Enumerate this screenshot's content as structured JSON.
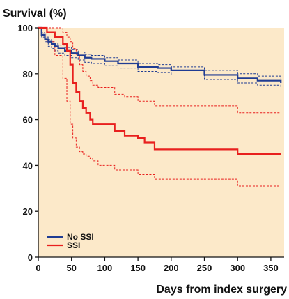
{
  "chart_data": {
    "type": "line",
    "title": "",
    "ylabel": "Survival (%)",
    "xlabel": "Days from index surgery",
    "xlim": [
      0,
      370
    ],
    "ylim": [
      0,
      100
    ],
    "xticks": [
      0,
      50,
      100,
      150,
      200,
      250,
      300,
      350
    ],
    "yticks": [
      0,
      20,
      40,
      60,
      80,
      100
    ],
    "grid": false,
    "legend": "bottom-left",
    "background": "#fce9c9",
    "series": [
      {
        "name": "No SSI",
        "color": "#1f3c93",
        "style": "step",
        "x": [
          0,
          5,
          10,
          15,
          20,
          25,
          30,
          40,
          50,
          60,
          70,
          80,
          100,
          120,
          150,
          180,
          200,
          250,
          300,
          330,
          365
        ],
        "values": [
          100,
          97,
          95,
          94,
          93,
          92,
          91,
          90,
          89,
          88,
          87,
          86.5,
          85.5,
          84.5,
          83,
          82.5,
          81.5,
          79.5,
          78,
          77,
          76
        ],
        "ci_lower": [
          100,
          96,
          94,
          92,
          91,
          90,
          89,
          88,
          87,
          86,
          85,
          84.5,
          83.5,
          82.5,
          81,
          80.5,
          79.5,
          77.5,
          76,
          75,
          74
        ],
        "ci_upper": [
          100,
          98,
          96,
          95,
          94,
          93,
          92.5,
          91.5,
          90.5,
          89.5,
          88.5,
          88,
          87,
          86,
          84.5,
          84,
          83,
          81.5,
          80,
          79,
          78
        ]
      },
      {
        "name": "SSI",
        "color": "#e8201e",
        "style": "step",
        "x": [
          0,
          13,
          25,
          37,
          43,
          48,
          52,
          57,
          62,
          67,
          72,
          78,
          82,
          90,
          100,
          115,
          130,
          150,
          160,
          175,
          300,
          365
        ],
        "values": [
          100,
          98,
          96,
          93,
          90,
          84,
          76,
          72,
          68,
          65,
          63,
          60,
          58,
          58,
          58,
          55,
          53,
          52,
          50,
          47,
          45,
          45
        ],
        "ci_lower": [
          100,
          94,
          88,
          78,
          68,
          58,
          52,
          48,
          46,
          45,
          44,
          43,
          42,
          40,
          40,
          38,
          38,
          36,
          36,
          34,
          31,
          31
        ],
        "ci_upper": [
          100,
          100,
          100,
          98,
          96,
          94,
          91,
          88,
          84,
          81,
          79,
          77,
          75,
          74,
          74,
          71,
          70,
          68,
          68,
          66,
          63,
          63
        ]
      }
    ]
  }
}
